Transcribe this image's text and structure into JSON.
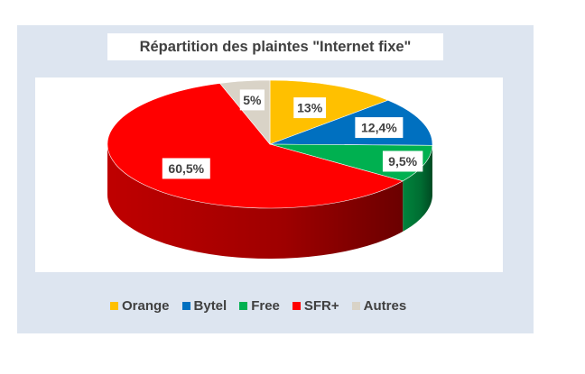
{
  "chart_data": {
    "type": "pie",
    "title": "Répartition des plaintes \"Internet fixe\"",
    "categories": [
      "Orange",
      "Bytel",
      "Free",
      "SFR+",
      "Autres"
    ],
    "values": [
      13,
      12.4,
      9.5,
      60.5,
      5
    ],
    "data_labels": [
      "13%",
      "12,4%",
      "9,5%",
      "60,5%",
      "5%"
    ],
    "colors": [
      "#ffc000",
      "#0070c0",
      "#00b050",
      "#ff0000",
      "#d9d3c7"
    ],
    "style": "3d",
    "legend": "bottom"
  }
}
